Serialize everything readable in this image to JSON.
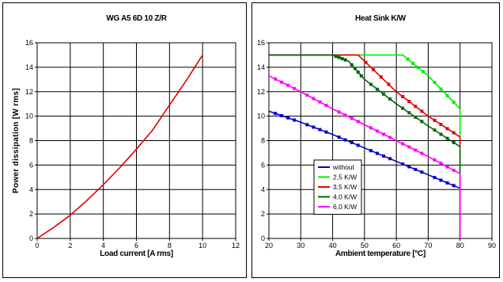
{
  "chart_data": [
    {
      "type": "line",
      "title": "WG A5 6D 10 Z/R",
      "xlabel": "Load current [A rms]",
      "ylabel": "Power dissipation  [W rms]",
      "xlim": [
        0,
        12
      ],
      "ylim": [
        0,
        16
      ],
      "x_ticks": [
        "0",
        "2",
        "4",
        "6",
        "8",
        "10",
        "12"
      ],
      "y_ticks": [
        "0",
        "2",
        "4",
        "6",
        "8",
        "10",
        "12",
        "14",
        "16"
      ],
      "grid": true,
      "legend": "none",
      "series": [
        {
          "color": "#e00000",
          "x": [
            0,
            1,
            2,
            3,
            4,
            5,
            6,
            7,
            8,
            9,
            10
          ],
          "y": [
            0,
            0.9,
            1.9,
            3.1,
            4.4,
            5.8,
            7.3,
            8.9,
            10.9,
            12.9,
            15.0
          ]
        }
      ]
    },
    {
      "type": "line",
      "title": "Heat Sink K/W",
      "xlabel": "Ambient temperature  [°C]",
      "ylabel": "",
      "xlim": [
        20,
        90
      ],
      "ylim": [
        0,
        16
      ],
      "x_ticks": [
        "20",
        "30",
        "40",
        "50",
        "60",
        "70",
        "80",
        "90"
      ],
      "y_ticks": [
        "0",
        "2",
        "4",
        "6",
        "8",
        "10",
        "12",
        "14",
        "16"
      ],
      "grid": true,
      "legend": "center-left",
      "series": [
        {
          "name": "without",
          "color": "#0000cc",
          "x": [
            20,
            30,
            40,
            50,
            60,
            70,
            80,
            80
          ],
          "y": [
            10.4,
            9.5,
            8.5,
            7.4,
            6.3,
            5.2,
            4.1,
            0
          ]
        },
        {
          "name": "2,5 K/W",
          "color": "#00ee00",
          "x": [
            20,
            40,
            62,
            70,
            80,
            80
          ],
          "y": [
            15.0,
            15.0,
            15.0,
            13.3,
            10.6,
            0
          ]
        },
        {
          "name": "3,5 K/W",
          "color": "#e00000",
          "x": [
            20,
            40,
            48,
            60,
            70,
            80,
            80
          ],
          "y": [
            15.0,
            15.0,
            15.0,
            12.0,
            10.0,
            8.3,
            0
          ]
        },
        {
          "name": "4,0 K/W",
          "color": "#006600",
          "x": [
            20,
            40,
            45,
            50,
            60,
            70,
            80,
            80
          ],
          "y": [
            15.0,
            15.0,
            14.5,
            13.0,
            11.0,
            9.2,
            7.5,
            0
          ]
        },
        {
          "name": "6,0 K/W",
          "color": "#ff00ff",
          "x": [
            20,
            30,
            40,
            50,
            60,
            70,
            80,
            80
          ],
          "y": [
            13.3,
            12.0,
            10.6,
            9.3,
            8.0,
            6.7,
            5.3,
            0
          ]
        }
      ]
    }
  ]
}
